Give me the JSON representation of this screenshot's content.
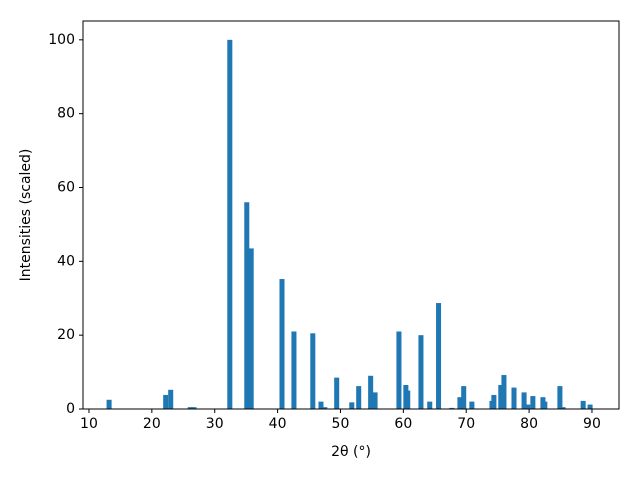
{
  "chart_data": {
    "type": "bar",
    "xlabel": "2θ (°)",
    "ylabel": "Intensities (scaled)",
    "x": [
      13.2,
      22.2,
      23.0,
      26.1,
      26.7,
      32.4,
      35.1,
      35.8,
      40.7,
      42.6,
      45.6,
      46.9,
      47.5,
      49.4,
      51.8,
      52.9,
      54.8,
      55.5,
      59.3,
      60.4,
      60.7,
      62.8,
      64.2,
      65.6,
      67.7,
      69.0,
      69.6,
      70.9,
      74.1,
      74.4,
      75.5,
      76.0,
      77.6,
      79.2,
      79.8,
      80.6,
      82.2,
      82.5,
      84.9,
      85.4,
      88.6,
      89.7
    ],
    "values": [
      2.5,
      3.8,
      5.2,
      0.5,
      0.5,
      100,
      56,
      43.5,
      35.2,
      21,
      20.5,
      2,
      0.5,
      8.5,
      1.8,
      6.2,
      9,
      4.5,
      21,
      6.5,
      5,
      20,
      2,
      28.7,
      0.3,
      3.2,
      6.2,
      2,
      2.2,
      3.8,
      6.5,
      9.2,
      5.8,
      4.5,
      1.2,
      3.5,
      3.2,
      2,
      6.2,
      0.5,
      2.2,
      1.2
    ],
    "color": "#1f77b4",
    "xlim": [
      9.05,
      94.3
    ],
    "xticks": [
      10,
      20,
      30,
      40,
      50,
      60,
      70,
      80,
      90
    ],
    "ylim": [
      0,
      105.1
    ],
    "yticks": [
      0,
      20,
      40,
      60,
      80,
      100
    ]
  }
}
